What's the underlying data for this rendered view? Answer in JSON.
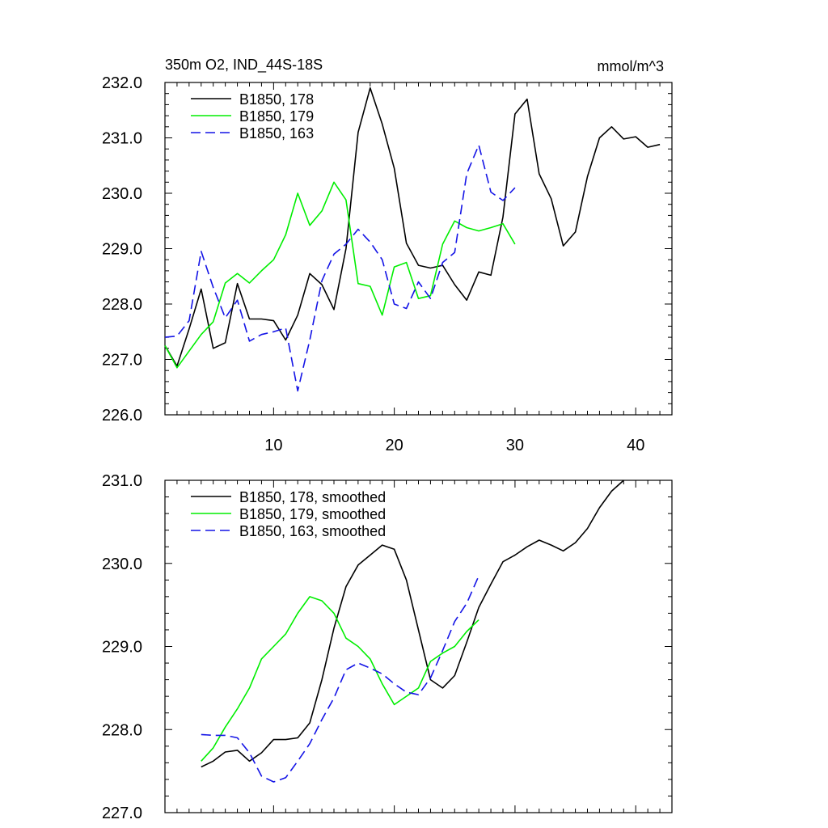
{
  "chart_data": [
    {
      "type": "line",
      "title": "350m O2, IND_44S-18S",
      "units": "mmol/m^3",
      "xlim": [
        1,
        43
      ],
      "ylim": [
        226.0,
        232.0
      ],
      "xticks": [
        10,
        20,
        30,
        40
      ],
      "xtick_labels": [
        "10",
        "20",
        "30",
        "40"
      ],
      "yticks": [
        226.0,
        227.0,
        228.0,
        229.0,
        230.0,
        231.0,
        232.0
      ],
      "ytick_labels": [
        "226.0",
        "227.0",
        "228.0",
        "229.0",
        "230.0",
        "231.0",
        "232.0"
      ],
      "legend_position": "top-left",
      "series": [
        {
          "name": "B1850, 178",
          "color": "#000000",
          "dash": "solid",
          "x": [
            1,
            2,
            3,
            4,
            5,
            6,
            7,
            8,
            9,
            10,
            11,
            12,
            13,
            14,
            15,
            16,
            17,
            18,
            19,
            20,
            21,
            22,
            23,
            24,
            25,
            26,
            27,
            28,
            29,
            30,
            31,
            32,
            33,
            34,
            35,
            36,
            37,
            38,
            39,
            40,
            41,
            42
          ],
          "y": [
            227.25,
            226.88,
            227.55,
            228.27,
            227.2,
            227.3,
            228.37,
            227.73,
            227.73,
            227.7,
            227.35,
            227.8,
            228.55,
            228.35,
            227.9,
            229.0,
            231.1,
            231.9,
            231.25,
            230.45,
            229.1,
            228.7,
            228.65,
            228.7,
            228.35,
            228.07,
            228.58,
            228.52,
            229.57,
            231.43,
            231.7,
            230.35,
            229.9,
            229.05,
            229.3,
            230.3,
            231.0,
            231.2,
            230.98,
            231.02,
            230.83,
            230.88
          ]
        },
        {
          "name": "B1850, 179",
          "color": "#00ee00",
          "dash": "solid",
          "x": [
            1,
            2,
            3,
            4,
            5,
            6,
            7,
            8,
            9,
            10,
            11,
            12,
            13,
            14,
            15,
            16,
            17,
            18,
            19,
            20,
            21,
            22,
            23,
            24,
            25,
            26,
            27,
            28,
            29,
            30
          ],
          "y": [
            227.25,
            226.85,
            227.15,
            227.45,
            227.68,
            228.38,
            228.55,
            228.38,
            228.6,
            228.8,
            229.25,
            230.0,
            229.42,
            229.68,
            230.2,
            229.88,
            228.37,
            228.32,
            227.8,
            228.67,
            228.75,
            228.1,
            228.15,
            229.08,
            229.5,
            229.38,
            229.32,
            229.38,
            229.45,
            229.08
          ]
        },
        {
          "name": "B1850, 163",
          "color": "#1414e6",
          "dash": "dashed",
          "x": [
            1,
            2,
            3,
            4,
            5,
            6,
            7,
            8,
            9,
            10,
            11,
            12,
            13,
            14,
            15,
            16,
            17,
            18,
            19,
            20,
            21,
            22,
            23,
            24,
            25,
            26,
            27,
            28,
            29,
            30
          ],
          "y": [
            227.4,
            227.42,
            227.7,
            228.95,
            228.3,
            227.75,
            228.07,
            227.33,
            227.45,
            227.5,
            227.57,
            226.43,
            227.35,
            228.42,
            228.9,
            229.08,
            229.35,
            229.12,
            228.8,
            228.0,
            227.92,
            228.4,
            228.1,
            228.75,
            228.93,
            230.35,
            230.87,
            230.02,
            229.87,
            230.1
          ]
        }
      ]
    },
    {
      "type": "line",
      "xlim": [
        1,
        43
      ],
      "ylim": [
        227.0,
        231.0
      ],
      "xticks": [
        10,
        20,
        30,
        40
      ],
      "yticks": [
        227.0,
        228.0,
        229.0,
        230.0,
        231.0
      ],
      "ytick_labels": [
        "227.0",
        "228.0",
        "229.0",
        "230.0",
        "231.0"
      ],
      "legend_position": "top-left",
      "series": [
        {
          "name": "B1850, 178, smoothed",
          "color": "#000000",
          "dash": "solid",
          "x": [
            4,
            5,
            6,
            7,
            8,
            9,
            10,
            11,
            12,
            13,
            14,
            15,
            16,
            17,
            18,
            19,
            20,
            21,
            22,
            23,
            24,
            25,
            26,
            27,
            28,
            29,
            30,
            31,
            32,
            33,
            34,
            35,
            36,
            37,
            38,
            39
          ],
          "y": [
            227.55,
            227.62,
            227.73,
            227.75,
            227.62,
            227.72,
            227.88,
            227.88,
            227.9,
            228.08,
            228.6,
            229.22,
            229.72,
            229.98,
            230.1,
            230.22,
            230.17,
            229.8,
            229.2,
            228.6,
            228.5,
            228.65,
            229.05,
            229.47,
            229.75,
            230.02,
            230.1,
            230.2,
            230.28,
            230.22,
            230.15,
            230.25,
            230.42,
            230.67,
            230.87,
            231.0
          ]
        },
        {
          "name": "B1850, 179, smoothed",
          "color": "#00ee00",
          "dash": "solid",
          "x": [
            4,
            5,
            6,
            7,
            8,
            9,
            10,
            11,
            12,
            13,
            14,
            15,
            16,
            17,
            18,
            19,
            20,
            21,
            22,
            23,
            24,
            25,
            26,
            27
          ],
          "y": [
            227.62,
            227.78,
            228.03,
            228.25,
            228.5,
            228.85,
            229.0,
            229.15,
            229.4,
            229.6,
            229.55,
            229.4,
            229.1,
            229.0,
            228.85,
            228.55,
            228.3,
            228.4,
            228.5,
            228.82,
            228.92,
            229.0,
            229.18,
            229.32
          ]
        },
        {
          "name": "B1850, 163, smoothed",
          "color": "#1414e6",
          "dash": "dashed",
          "x": [
            4,
            5,
            6,
            7,
            8,
            9,
            10,
            11,
            12,
            13,
            14,
            15,
            16,
            17,
            18,
            19,
            20,
            21,
            22,
            23,
            24,
            25,
            26,
            27
          ],
          "y": [
            227.94,
            227.93,
            227.93,
            227.9,
            227.72,
            227.44,
            227.37,
            227.42,
            227.62,
            227.83,
            228.12,
            228.38,
            228.72,
            228.8,
            228.74,
            228.67,
            228.55,
            228.45,
            228.42,
            228.62,
            228.95,
            229.3,
            229.52,
            229.85
          ]
        }
      ]
    }
  ]
}
